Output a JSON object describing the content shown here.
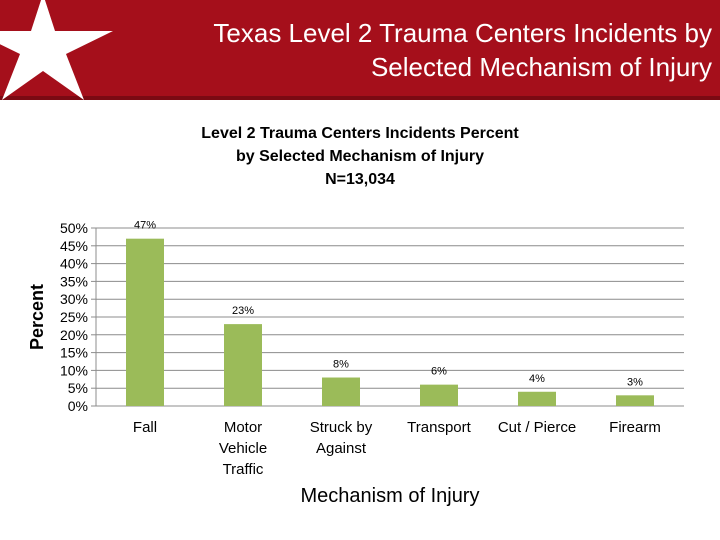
{
  "slide": {
    "title_line1": "Texas Level 2 Trauma Centers Incidents by",
    "title_line2": "Selected Mechanism of Injury",
    "banner_color": "#a50f1b",
    "logo_icon": "white-star-icon"
  },
  "chart_data": {
    "type": "bar",
    "title_lines": [
      "Level 2 Trauma Centers Incidents Percent",
      "by Selected Mechanism of Injury",
      "N=13,034"
    ],
    "categories": [
      [
        "Fall"
      ],
      [
        "Motor",
        "Vehicle",
        "Traffic"
      ],
      [
        "Struck by",
        "Against"
      ],
      [
        "Transport"
      ],
      [
        "Cut / Pierce"
      ],
      [
        "Firearm"
      ]
    ],
    "values": [
      47,
      23,
      8,
      6,
      4,
      3
    ],
    "data_labels": [
      "47%",
      "23%",
      "8%",
      "6%",
      "4%",
      "3%"
    ],
    "xlabel": "Mechanism of Injury",
    "ylabel": "Percent",
    "ylim": [
      0,
      50
    ],
    "yticks": [
      "50%",
      "45%",
      "40%",
      "35%",
      "30%",
      "25%",
      "20%",
      "15%",
      "10%",
      "5%",
      "0%"
    ],
    "grid": true,
    "bar_color": "#9bbb59"
  }
}
